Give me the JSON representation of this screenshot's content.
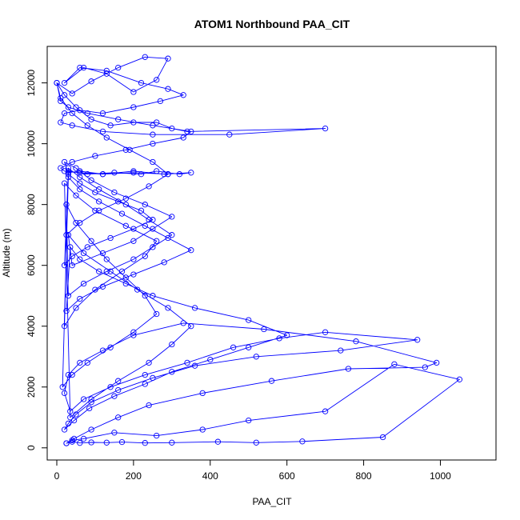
{
  "chart_data": {
    "type": "scatter",
    "title": "ATOM1 Northbound PAA_CIT",
    "xlabel": "PAA_CIT",
    "ylabel": "Altitude (m)",
    "xlim": [
      -25,
      1145
    ],
    "ylim": [
      -400,
      13200
    ],
    "xticks": [
      0,
      200,
      400,
      600,
      800,
      1000
    ],
    "yticks": [
      0,
      2000,
      4000,
      6000,
      8000,
      10000,
      12000
    ],
    "color": "#0000ff",
    "grid": false,
    "legend": "none",
    "series": [
      {
        "style": "line-and-open-circle",
        "x": [
          25,
          40,
          60,
          90,
          130,
          170,
          230,
          300,
          420,
          520,
          640,
          850,
          1050,
          880,
          700,
          500,
          380,
          260,
          150,
          70,
          40,
          25,
          45,
          90,
          160,
          240,
          380,
          560,
          760,
          960,
          990,
          780,
          540,
          330,
          200,
          120,
          60,
          30,
          20,
          35,
          70,
          140,
          230,
          340,
          460,
          580,
          700,
          940,
          740,
          520,
          360,
          250,
          160,
          90,
          50,
          30,
          20,
          45,
          85,
          150,
          230,
          300,
          400,
          500,
          600,
          500,
          360,
          250,
          180,
          110,
          60,
          35,
          25,
          60,
          120,
          200,
          280,
          350,
          290,
          230,
          170,
          110,
          60,
          30,
          15,
          40,
          80,
          140,
          200,
          260,
          230,
          180,
          130,
          90,
          50,
          25,
          30,
          70,
          130,
          200,
          250,
          300,
          240,
          180,
          110,
          60,
          30,
          25,
          60,
          110,
          180,
          240,
          290,
          200,
          120,
          60,
          30,
          20,
          50,
          100,
          170,
          230,
          260,
          180,
          100,
          50,
          20,
          35,
          90,
          160,
          240,
          300,
          350,
          290,
          210,
          140,
          70,
          30,
          40,
          120,
          200,
          250,
          300,
          230,
          150,
          90,
          50,
          20,
          30,
          60,
          100,
          160,
          220,
          250,
          200,
          140,
          80,
          40,
          20,
          30,
          80,
          150,
          220,
          260,
          320,
          350,
          280,
          200,
          120,
          60,
          20,
          10,
          40,
          100,
          180,
          250,
          330,
          350,
          250,
          160,
          80,
          30,
          10,
          0,
          20,
          50,
          90,
          140,
          200,
          260,
          300,
          340,
          700,
          450,
          250,
          120,
          40,
          10,
          20,
          60,
          120,
          200,
          270,
          330,
          290,
          220,
          130,
          60,
          20,
          70,
          130,
          200,
          260,
          290,
          230,
          160,
          90,
          40,
          0,
          10,
          40,
          80,
          130,
          190,
          250,
          290
        ],
        "y": [
          150,
          200,
          160,
          180,
          170,
          190,
          160,
          170,
          200,
          170,
          210,
          350,
          2250,
          2750,
          1200,
          900,
          600,
          400,
          500,
          300,
          250,
          150,
          300,
          600,
          1000,
          1400,
          1800,
          2200,
          2600,
          2650,
          2800,
          3500,
          3900,
          4100,
          3700,
          3200,
          2800,
          2400,
          1800,
          1200,
          1600,
          2000,
          2400,
          2800,
          3300,
          3600,
          3800,
          3550,
          3200,
          3000,
          2700,
          2300,
          1900,
          1500,
          1100,
          800,
          600,
          900,
          1300,
          1700,
          2100,
          2500,
          2900,
          3300,
          3700,
          4200,
          4600,
          5000,
          5400,
          5800,
          6200,
          6600,
          4500,
          4900,
          5300,
          5700,
          6100,
          6500,
          6900,
          7300,
          7700,
          8100,
          8500,
          8900,
          2000,
          2400,
          2800,
          3300,
          3800,
          4400,
          5000,
          5600,
          6200,
          6800,
          7400,
          8000,
          5000,
          5400,
          5800,
          6200,
          6600,
          7000,
          7500,
          8000,
          8500,
          8900,
          9200,
          7000,
          7400,
          7800,
          8200,
          8600,
          9000,
          9050,
          9000,
          9100,
          9050,
          4000,
          4600,
          5200,
          5800,
          6300,
          6800,
          7300,
          7800,
          8300,
          8700,
          1000,
          1600,
          2200,
          2800,
          3400,
          4000,
          4600,
          5200,
          5800,
          6400,
          7000,
          6000,
          6400,
          6800,
          7200,
          7600,
          8000,
          8400,
          8800,
          9200,
          9400,
          9000,
          8700,
          8400,
          8100,
          7800,
          7500,
          7200,
          6900,
          6600,
          6300,
          6000,
          9100,
          9000,
          9050,
          9000,
          9100,
          9000,
          9050,
          9000,
          9100,
          9000,
          9050,
          9100,
          9200,
          9400,
          9600,
          9800,
          10000,
          10200,
          10400,
          10600,
          10800,
          11000,
          11200,
          11400,
          12000,
          11600,
          11200,
          10800,
          10600,
          10700,
          10700,
          10500,
          10400,
          10500,
          10300,
          10300,
          10400,
          10600,
          10700,
          11000,
          11100,
          11000,
          11200,
          11400,
          11600,
          11800,
          12000,
          12400,
          12500,
          12000,
          12500,
          12300,
          11700,
          12100,
          12800,
          12850,
          12500,
          12050,
          11650,
          12000,
          11500,
          11000,
          10600,
          10200,
          9800,
          9400,
          9000
        ]
      }
    ]
  }
}
